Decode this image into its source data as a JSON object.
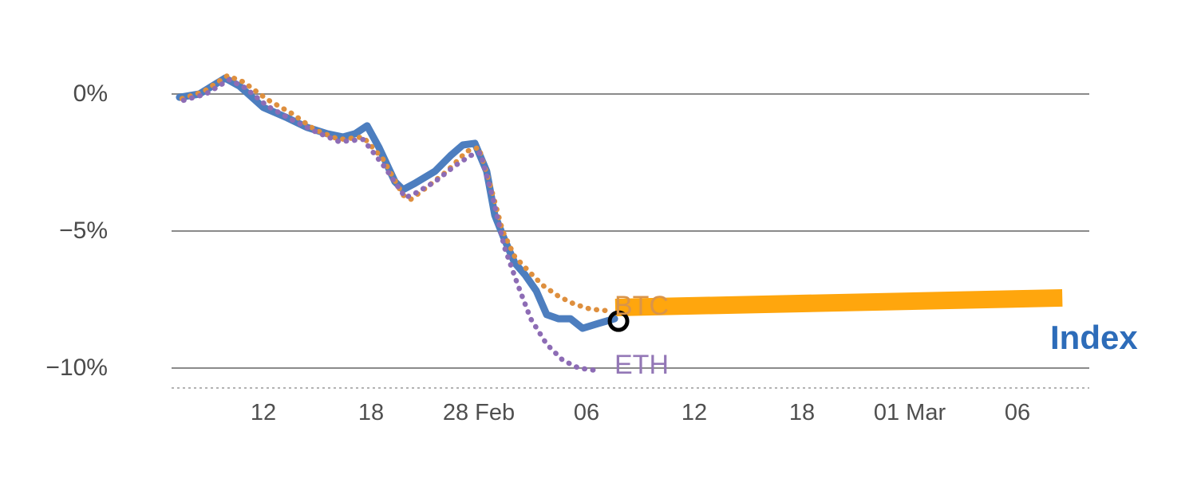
{
  "chart_data": {
    "type": "line",
    "title": "",
    "x_axis": {
      "unit": "hour-of-period",
      "ticks": [
        {
          "hour": 12,
          "label": "12"
        },
        {
          "hour": 18,
          "label": "18"
        },
        {
          "hour": 24,
          "label": "28 Feb"
        },
        {
          "hour": 30,
          "label": "06"
        },
        {
          "hour": 36,
          "label": "12"
        },
        {
          "hour": 42,
          "label": "18"
        },
        {
          "hour": 48,
          "label": "01 Mar"
        },
        {
          "hour": 54,
          "label": "06"
        }
      ]
    },
    "y_axis": {
      "unit": "percent change",
      "range": [
        -10.8,
        1.2
      ],
      "ticks": [
        {
          "value": 0,
          "label": "0%"
        },
        {
          "value": -5,
          "label": "−5%"
        },
        {
          "value": -10,
          "label": "−10%"
        }
      ]
    },
    "colors": {
      "grid": "#8a8a8a",
      "axis": "#9a9a9a",
      "index_line": "#4d7ebf",
      "btc_line": "#de8f3e",
      "eth_line": "#8d6cb5",
      "projection_band": "#ffa60d",
      "marker": "#000000"
    },
    "series": [
      {
        "name": "Index",
        "style": "solid",
        "width": 9,
        "color": "#4d7ebf",
        "points": [
          [
            7.33,
            -0.12
          ],
          [
            8.44,
            0
          ],
          [
            9.87,
            0.58
          ],
          [
            10.67,
            0.29
          ],
          [
            12,
            -0.49
          ],
          [
            13.33,
            -0.87
          ],
          [
            14.44,
            -1.22
          ],
          [
            15.56,
            -1.45
          ],
          [
            16.44,
            -1.57
          ],
          [
            17.11,
            -1.45
          ],
          [
            17.78,
            -1.16
          ],
          [
            18.44,
            -1.95
          ],
          [
            19.33,
            -3.2
          ],
          [
            19.78,
            -3.49
          ],
          [
            20.44,
            -3.26
          ],
          [
            21.56,
            -2.82
          ],
          [
            22.44,
            -2.24
          ],
          [
            23.11,
            -1.86
          ],
          [
            23.78,
            -1.8
          ],
          [
            24.44,
            -2.82
          ],
          [
            24.89,
            -4.42
          ],
          [
            25.42,
            -5.29
          ],
          [
            26,
            -6.16
          ],
          [
            26.58,
            -6.6
          ],
          [
            27.2,
            -7.18
          ],
          [
            27.78,
            -8.05
          ],
          [
            28.44,
            -8.2
          ],
          [
            29.11,
            -8.2
          ],
          [
            29.78,
            -8.55
          ],
          [
            30.67,
            -8.37
          ],
          [
            31.56,
            -8.2
          ]
        ]
      },
      {
        "name": "BTC",
        "style": "dotted",
        "width": 6.5,
        "color": "#de8f3e",
        "points": [
          [
            7.47,
            -0.17
          ],
          [
            8.67,
            0.09
          ],
          [
            10,
            0.67
          ],
          [
            10.89,
            0.44
          ],
          [
            12.22,
            -0.2
          ],
          [
            13.56,
            -0.7
          ],
          [
            14.89,
            -1.31
          ],
          [
            16.22,
            -1.66
          ],
          [
            17.56,
            -1.57
          ],
          [
            18.67,
            -2.38
          ],
          [
            19.78,
            -3.69
          ],
          [
            20.22,
            -3.84
          ],
          [
            21.11,
            -3.4
          ],
          [
            22.22,
            -2.82
          ],
          [
            23.33,
            -2.09
          ],
          [
            24,
            -1.95
          ],
          [
            24.67,
            -3.4
          ],
          [
            25.33,
            -5
          ],
          [
            26,
            -5.93
          ],
          [
            26.76,
            -6.45
          ],
          [
            27.56,
            -6.98
          ],
          [
            28.44,
            -7.38
          ],
          [
            29.33,
            -7.67
          ],
          [
            30.22,
            -7.85
          ],
          [
            31.2,
            -7.91
          ]
        ]
      },
      {
        "name": "ETH",
        "style": "dotted",
        "width": 6.5,
        "color": "#8d6cb5",
        "points": [
          [
            7.56,
            -0.23
          ],
          [
            8.8,
            0
          ],
          [
            10.09,
            0.52
          ],
          [
            10.98,
            0.23
          ],
          [
            12.22,
            -0.44
          ],
          [
            13.56,
            -0.93
          ],
          [
            14.89,
            -1.37
          ],
          [
            16.22,
            -1.74
          ],
          [
            17.56,
            -1.66
          ],
          [
            18.76,
            -2.67
          ],
          [
            19.91,
            -3.78
          ],
          [
            20.44,
            -3.63
          ],
          [
            21.56,
            -3.2
          ],
          [
            22.67,
            -2.62
          ],
          [
            23.56,
            -2.24
          ],
          [
            24.09,
            -2.15
          ],
          [
            24.8,
            -3.84
          ],
          [
            25.42,
            -5.58
          ],
          [
            26.13,
            -6.89
          ],
          [
            26.89,
            -8.2
          ],
          [
            27.78,
            -9.13
          ],
          [
            28.67,
            -9.71
          ],
          [
            29.56,
            -10
          ],
          [
            30.58,
            -10.09
          ]
        ]
      }
    ],
    "projection": {
      "name": "Index projection",
      "color": "#ffa60d",
      "width": 22,
      "points": [
        [
          31.6,
          -7.79
        ],
        [
          56.5,
          -7.44
        ]
      ]
    },
    "marker": {
      "shape": "open-circle",
      "color": "#000000",
      "hour": 31.78,
      "value": -8.29,
      "radius": 11
    },
    "labels": {
      "btc": {
        "text": "BTC",
        "color": "#d9944a"
      },
      "eth": {
        "text": "ETH",
        "color": "#9377b6"
      },
      "index": {
        "text": "Index",
        "color": "#2d6cb9"
      }
    }
  }
}
